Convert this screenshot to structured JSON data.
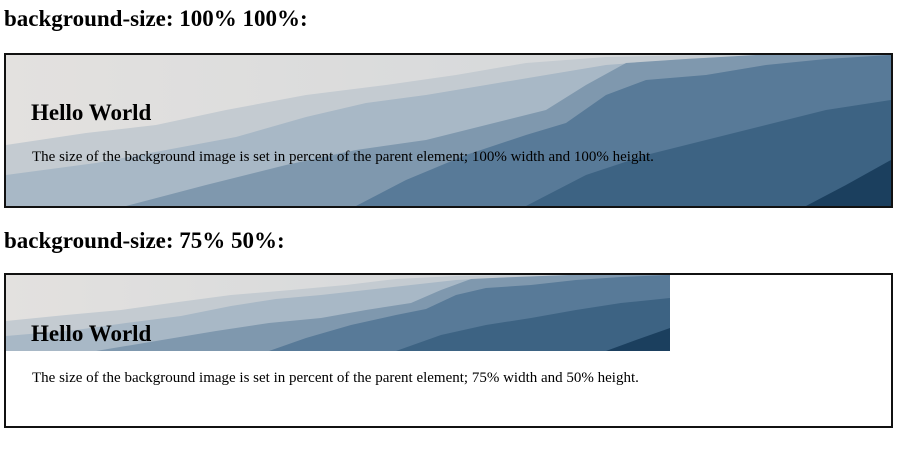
{
  "example1": {
    "heading": "background-size: 100% 100%:",
    "title": "Hello World",
    "text": "The size of the background image is set in percent of the parent element; 100% width and 100% height."
  },
  "example2": {
    "heading": "background-size: 75% 50%:",
    "title": "Hello World",
    "text": "The size of the background image is set in percent of the parent element; 75% width and 50% height."
  },
  "colors": {
    "sky": "#e2e1df",
    "ridge_far": "#c4cbd1",
    "ridge_mid": "#9fb0c0",
    "ridge_near": "#6f8ba4",
    "ridge_front": "#3d6383",
    "ridge_deep": "#1b3f5e"
  }
}
